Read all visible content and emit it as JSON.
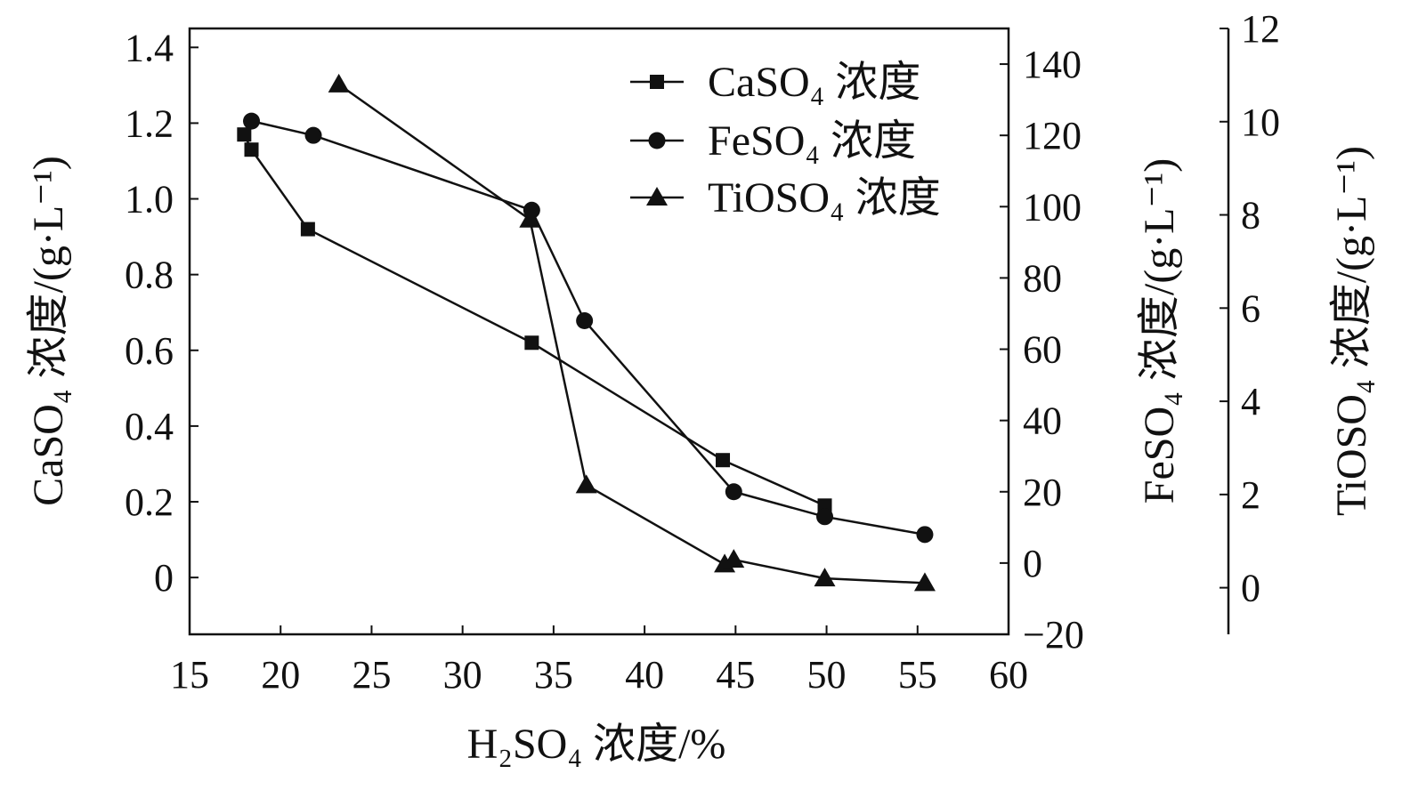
{
  "chart_data": {
    "type": "line",
    "x": {
      "label": "H₂SO₄ 浓度/%",
      "range": [
        15,
        60
      ],
      "ticks": [
        "15",
        "20",
        "25",
        "30",
        "35",
        "40",
        "45",
        "50",
        "55",
        "60"
      ]
    },
    "y_left": {
      "label": "CaSO₄ 浓度/(g·L⁻¹)",
      "range": [
        -0.15,
        1.45
      ],
      "ticks": [
        "0",
        "0.2",
        "0.4",
        "0.6",
        "0.8",
        "1.0",
        "1.2",
        "1.4"
      ]
    },
    "y_right1": {
      "label": "FeSO₄ 浓度/(g·L⁻¹)",
      "range": [
        -20,
        150
      ],
      "ticks": [
        "−20",
        "0",
        "20",
        "40",
        "60",
        "80",
        "100",
        "120",
        "140"
      ]
    },
    "y_right2": {
      "label": "TiOSO₄ 浓度/(g·L⁻¹)",
      "range": [
        -1,
        12
      ],
      "ticks": [
        "0",
        "2",
        "4",
        "6",
        "8",
        "10",
        "12"
      ]
    },
    "legend_position": "top-right",
    "series": [
      {
        "name": "CaSO₄ 浓度",
        "axis": "left",
        "marker": "square",
        "x": [
          18.0,
          18.4,
          21.5,
          33.8,
          44.3,
          49.9
        ],
        "y": [
          1.17,
          1.13,
          0.92,
          0.62,
          0.31,
          0.19
        ]
      },
      {
        "name": "FeSO₄ 浓度",
        "axis": "right1",
        "marker": "circle",
        "x": [
          18.4,
          21.8,
          33.8,
          36.7,
          44.9,
          49.9,
          55.4
        ],
        "y": [
          124,
          120,
          99,
          68,
          20,
          13,
          8
        ]
      },
      {
        "name": "TiOSO₄ 浓度",
        "axis": "right2",
        "marker": "triangle",
        "x": [
          23.2,
          33.7,
          36.8,
          44.4,
          44.9,
          49.9,
          55.4
        ],
        "y": [
          10.8,
          7.9,
          2.2,
          0.5,
          0.6,
          0.2,
          0.1
        ]
      }
    ]
  }
}
